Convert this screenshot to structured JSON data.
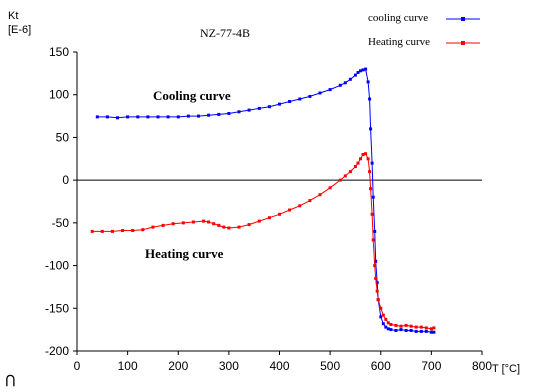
{
  "chart_data": {
    "type": "scatter",
    "title": "NZ-77-4B",
    "ylabel": "Kt",
    "yunit": "[E-6]",
    "xlabel": "T [°C]",
    "xlim": [
      0,
      800
    ],
    "ylim": [
      -200,
      150
    ],
    "xticks": [
      0,
      100,
      200,
      300,
      400,
      500,
      600,
      700,
      800
    ],
    "yticks": [
      -200,
      -150,
      -100,
      -50,
      0,
      50,
      100,
      150
    ],
    "grid": false,
    "zero_line": true,
    "legend_position": "top-right",
    "annotations": [
      "Cooling curve",
      "Heating curve"
    ],
    "corner_mark": "⊃",
    "series": [
      {
        "name": "cooling curve",
        "color": "#0000ff",
        "marker": "square",
        "x": [
          40,
          60,
          80,
          100,
          120,
          140,
          160,
          180,
          200,
          220,
          240,
          260,
          280,
          300,
          320,
          340,
          360,
          380,
          400,
          420,
          440,
          460,
          480,
          500,
          520,
          530,
          540,
          550,
          555,
          560,
          565,
          570,
          575,
          578,
          580,
          583,
          585,
          588,
          590,
          593,
          595,
          600,
          605,
          610,
          615,
          620,
          630,
          640,
          650,
          660,
          670,
          680,
          690,
          700,
          705
        ],
        "y": [
          74,
          74,
          73,
          74,
          74,
          74,
          74,
          74,
          74,
          75,
          75,
          76,
          77,
          78,
          80,
          82,
          84,
          86,
          89,
          92,
          95,
          98,
          102,
          106,
          111,
          114,
          118,
          123,
          126,
          128,
          129,
          130,
          115,
          95,
          60,
          20,
          -20,
          -60,
          -95,
          -120,
          -140,
          -160,
          -168,
          -172,
          -174,
          -175,
          -176,
          -175,
          -176,
          -176,
          -177,
          -177,
          -177,
          -178,
          -178
        ]
      },
      {
        "name": "Heating curve",
        "color": "#ff0000",
        "marker": "square",
        "x": [
          30,
          50,
          70,
          90,
          110,
          130,
          150,
          170,
          190,
          210,
          230,
          250,
          260,
          270,
          280,
          290,
          300,
          320,
          340,
          360,
          380,
          400,
          420,
          440,
          460,
          480,
          500,
          520,
          530,
          540,
          550,
          555,
          560,
          565,
          570,
          575,
          578,
          580,
          583,
          585,
          588,
          590,
          593,
          595,
          600,
          605,
          610,
          615,
          620,
          630,
          640,
          650,
          660,
          670,
          680,
          690,
          700,
          705
        ],
        "y": [
          -60,
          -60,
          -60,
          -59,
          -59,
          -58,
          -55,
          -53,
          -51,
          -50,
          -49,
          -48,
          -49,
          -51,
          -53,
          -55,
          -56,
          -55,
          -52,
          -48,
          -44,
          -40,
          -35,
          -30,
          -24,
          -17,
          -9,
          0,
          5,
          10,
          16,
          20,
          25,
          30,
          31,
          25,
          10,
          -10,
          -40,
          -70,
          -100,
          -115,
          -130,
          -140,
          -150,
          -158,
          -163,
          -167,
          -169,
          -170,
          -171,
          -170,
          -171,
          -172,
          -172,
          -173,
          -174,
          -173
        ]
      }
    ]
  }
}
